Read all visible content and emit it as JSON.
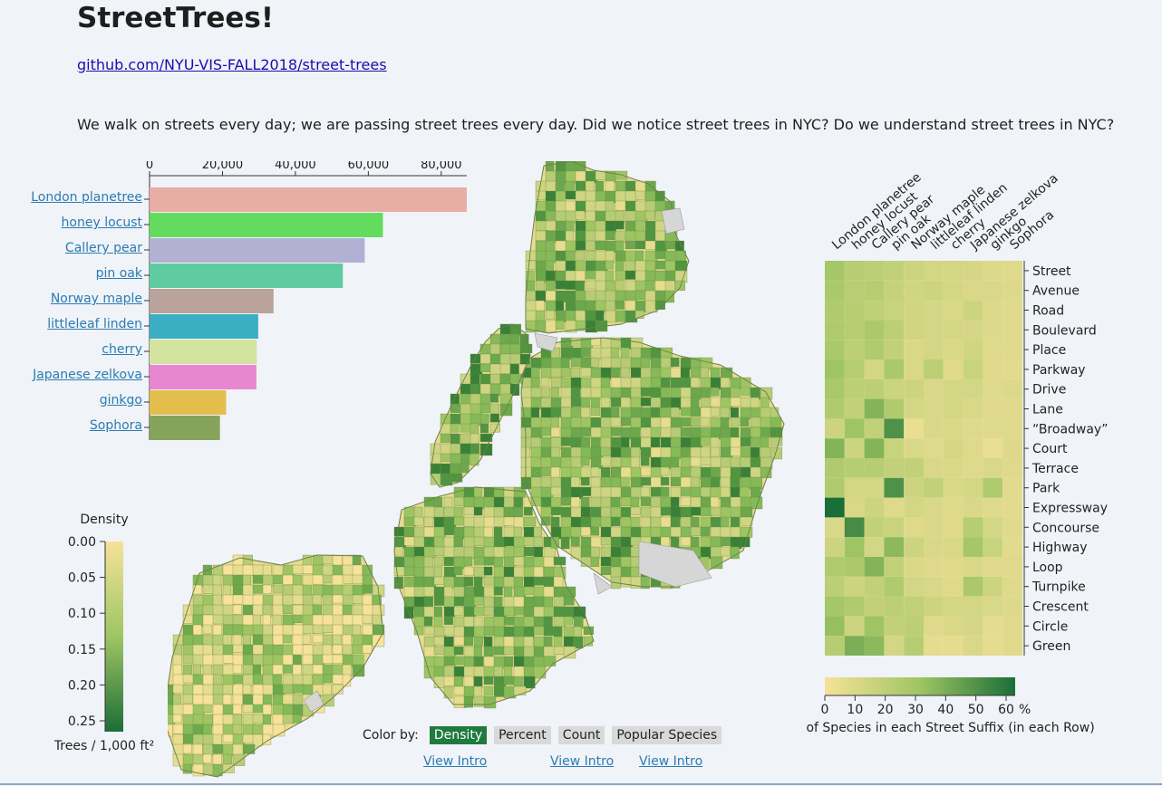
{
  "title": "StreetTrees!",
  "repo_link": "github.com/NYU-VIS-FALL2018/street-trees",
  "intro": "We walk on streets every day; we are passing street trees every day. Did we notice street trees in NYC? Do we understand street trees in NYC?",
  "chart_data": [
    {
      "type": "bar",
      "orientation": "horizontal",
      "categories": [
        "London planetree",
        "honey locust",
        "Callery pear",
        "pin oak",
        "Norway maple",
        "littleleaf linden",
        "cherry",
        "Japanese zelkova",
        "ginkgo",
        "Sophora"
      ],
      "values": [
        87000,
        64000,
        59000,
        53000,
        34000,
        29800,
        29400,
        29300,
        21000,
        19300
      ],
      "colors": [
        "#e8aea5",
        "#63db5f",
        "#b2b1d3",
        "#5ecba1",
        "#b9a39a",
        "#3aaec3",
        "#d3e3a0",
        "#e887cf",
        "#e3be4d",
        "#86a35b"
      ],
      "x_ticks": [
        "0",
        "20,000",
        "40,000",
        "60,000",
        "80,000"
      ],
      "xlim": [
        0,
        87000
      ]
    },
    {
      "type": "heatmap",
      "columns": [
        "London planetree",
        "honey locust",
        "Callery pear",
        "pin oak",
        "Norway maple",
        "littleleaf linden",
        "cherry",
        "Japanese zelkova",
        "ginkgo",
        "Sophora"
      ],
      "rows": [
        "Street",
        "Avenue",
        "Road",
        "Boulevard",
        "Place",
        "Parkway",
        "Drive",
        "Lane",
        "“Broadway”",
        "Court",
        "Terrace",
        "Park",
        "Expressway",
        "Concourse",
        "Highway",
        "Loop",
        "Turnpike",
        "Crescent",
        "Circle",
        "Green"
      ],
      "values": [
        [
          28,
          22,
          20,
          18,
          14,
          12,
          12,
          11,
          9,
          8
        ],
        [
          26,
          21,
          22,
          17,
          13,
          14,
          12,
          10,
          10,
          9
        ],
        [
          24,
          22,
          19,
          16,
          13,
          12,
          10,
          14,
          9,
          8
        ],
        [
          25,
          22,
          26,
          20,
          13,
          12,
          12,
          11,
          9,
          8
        ],
        [
          26,
          20,
          24,
          18,
          10,
          12,
          10,
          13,
          8,
          8
        ],
        [
          30,
          22,
          12,
          26,
          10,
          20,
          8,
          16,
          8,
          7
        ],
        [
          27,
          20,
          20,
          15,
          14,
          10,
          12,
          12,
          8,
          9
        ],
        [
          24,
          18,
          36,
          24,
          12,
          10,
          12,
          10,
          8,
          8
        ],
        [
          14,
          30,
          18,
          48,
          4,
          10,
          10,
          8,
          8,
          8
        ],
        [
          36,
          14,
          36,
          16,
          10,
          8,
          12,
          8,
          4,
          9
        ],
        [
          24,
          22,
          22,
          18,
          18,
          10,
          10,
          8,
          10,
          8
        ],
        [
          24,
          12,
          12,
          48,
          14,
          18,
          10,
          12,
          24,
          7
        ],
        [
          62,
          10,
          14,
          8,
          12,
          10,
          8,
          10,
          8,
          7
        ],
        [
          10,
          50,
          18,
          16,
          8,
          10,
          8,
          22,
          12,
          8
        ],
        [
          14,
          30,
          12,
          34,
          14,
          10,
          10,
          28,
          16,
          7
        ],
        [
          24,
          26,
          36,
          18,
          10,
          8,
          8,
          10,
          8,
          8
        ],
        [
          20,
          14,
          18,
          24,
          12,
          10,
          8,
          26,
          14,
          8
        ],
        [
          28,
          24,
          18,
          20,
          18,
          14,
          12,
          12,
          10,
          9
        ],
        [
          32,
          14,
          30,
          18,
          20,
          8,
          10,
          12,
          6,
          8
        ],
        [
          22,
          38,
          34,
          12,
          22,
          6,
          6,
          10,
          6,
          8
        ]
      ],
      "color_scale": {
        "min": 0,
        "max": 60,
        "low": "#f6e29a",
        "mid": "#9fc563",
        "high": "#1a6e38"
      },
      "legend_ticks": [
        "0",
        "10",
        "20",
        "30",
        "40",
        "50",
        "60"
      ],
      "legend_unit": "%",
      "legend_title": "Percent of Species in each Street Suffix (in each Row)"
    }
  ],
  "density_legend": {
    "title": "Density",
    "ticks": [
      "0.00",
      "0.05",
      "0.10",
      "0.15",
      "0.20",
      "0.25"
    ],
    "unit_label": "Trees / 1,000 ft²",
    "low": "#f6e29a",
    "high": "#1a6e38"
  },
  "controls": {
    "color_by_label": "Color by:",
    "buttons": [
      "Density",
      "Percent",
      "Count",
      "Popular Species"
    ],
    "active": "Density",
    "view_intro": "View Intro"
  },
  "map_colors": [
    "#f6e29a",
    "#e7dd8f",
    "#cfd582",
    "#b7cc74",
    "#9fc563",
    "#86b957",
    "#6da84c",
    "#519540",
    "#3a8036",
    "#1f6b30"
  ],
  "water_gray": "#d6d6d6"
}
